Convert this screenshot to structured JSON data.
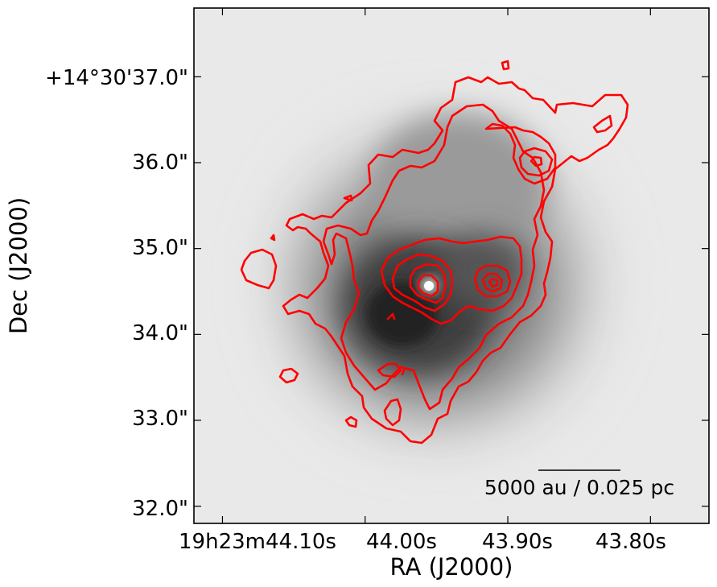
{
  "chart_data": {
    "type": "contour",
    "description_of_background": "greyscale continuum image with contour overlay",
    "xlabel": "RA (J2000)",
    "ylabel": "Dec (J2000)",
    "x_ticks": [
      {
        "label": "19h23m44.10s",
        "value": 44.1
      },
      {
        "label": "44.00s",
        "value": 44.0
      },
      {
        "label": "43.90s",
        "value": 43.9
      },
      {
        "label": "43.80s",
        "value": 43.8
      }
    ],
    "y_ticks": [
      {
        "label": "+14°30'37.0\"",
        "value": 37.0
      },
      {
        "label": "36.0\"",
        "value": 36.0
      },
      {
        "label": "35.0\"",
        "value": 35.0
      },
      {
        "label": "34.0\"",
        "value": 34.0
      },
      {
        "label": "33.0\"",
        "value": 33.0
      },
      {
        "label": "32.0\"",
        "value": 32.0
      }
    ],
    "xlim": [
      44.12,
      43.759
    ],
    "ylim": [
      31.8,
      37.8
    ],
    "scalebar_label": "5000 au / 0.025 pc",
    "contour_color": "#ff0000",
    "image_colormap": "greys",
    "grid": false,
    "peaks": [
      {
        "name": "",
        "ra_s": 43.968,
        "dec_s": 34.6
      },
      {
        "name": "",
        "ra_s": 43.904,
        "dec_s": 34.6
      },
      {
        "name": "",
        "ra_s": 43.853,
        "dec_s": 36.0
      }
    ]
  }
}
